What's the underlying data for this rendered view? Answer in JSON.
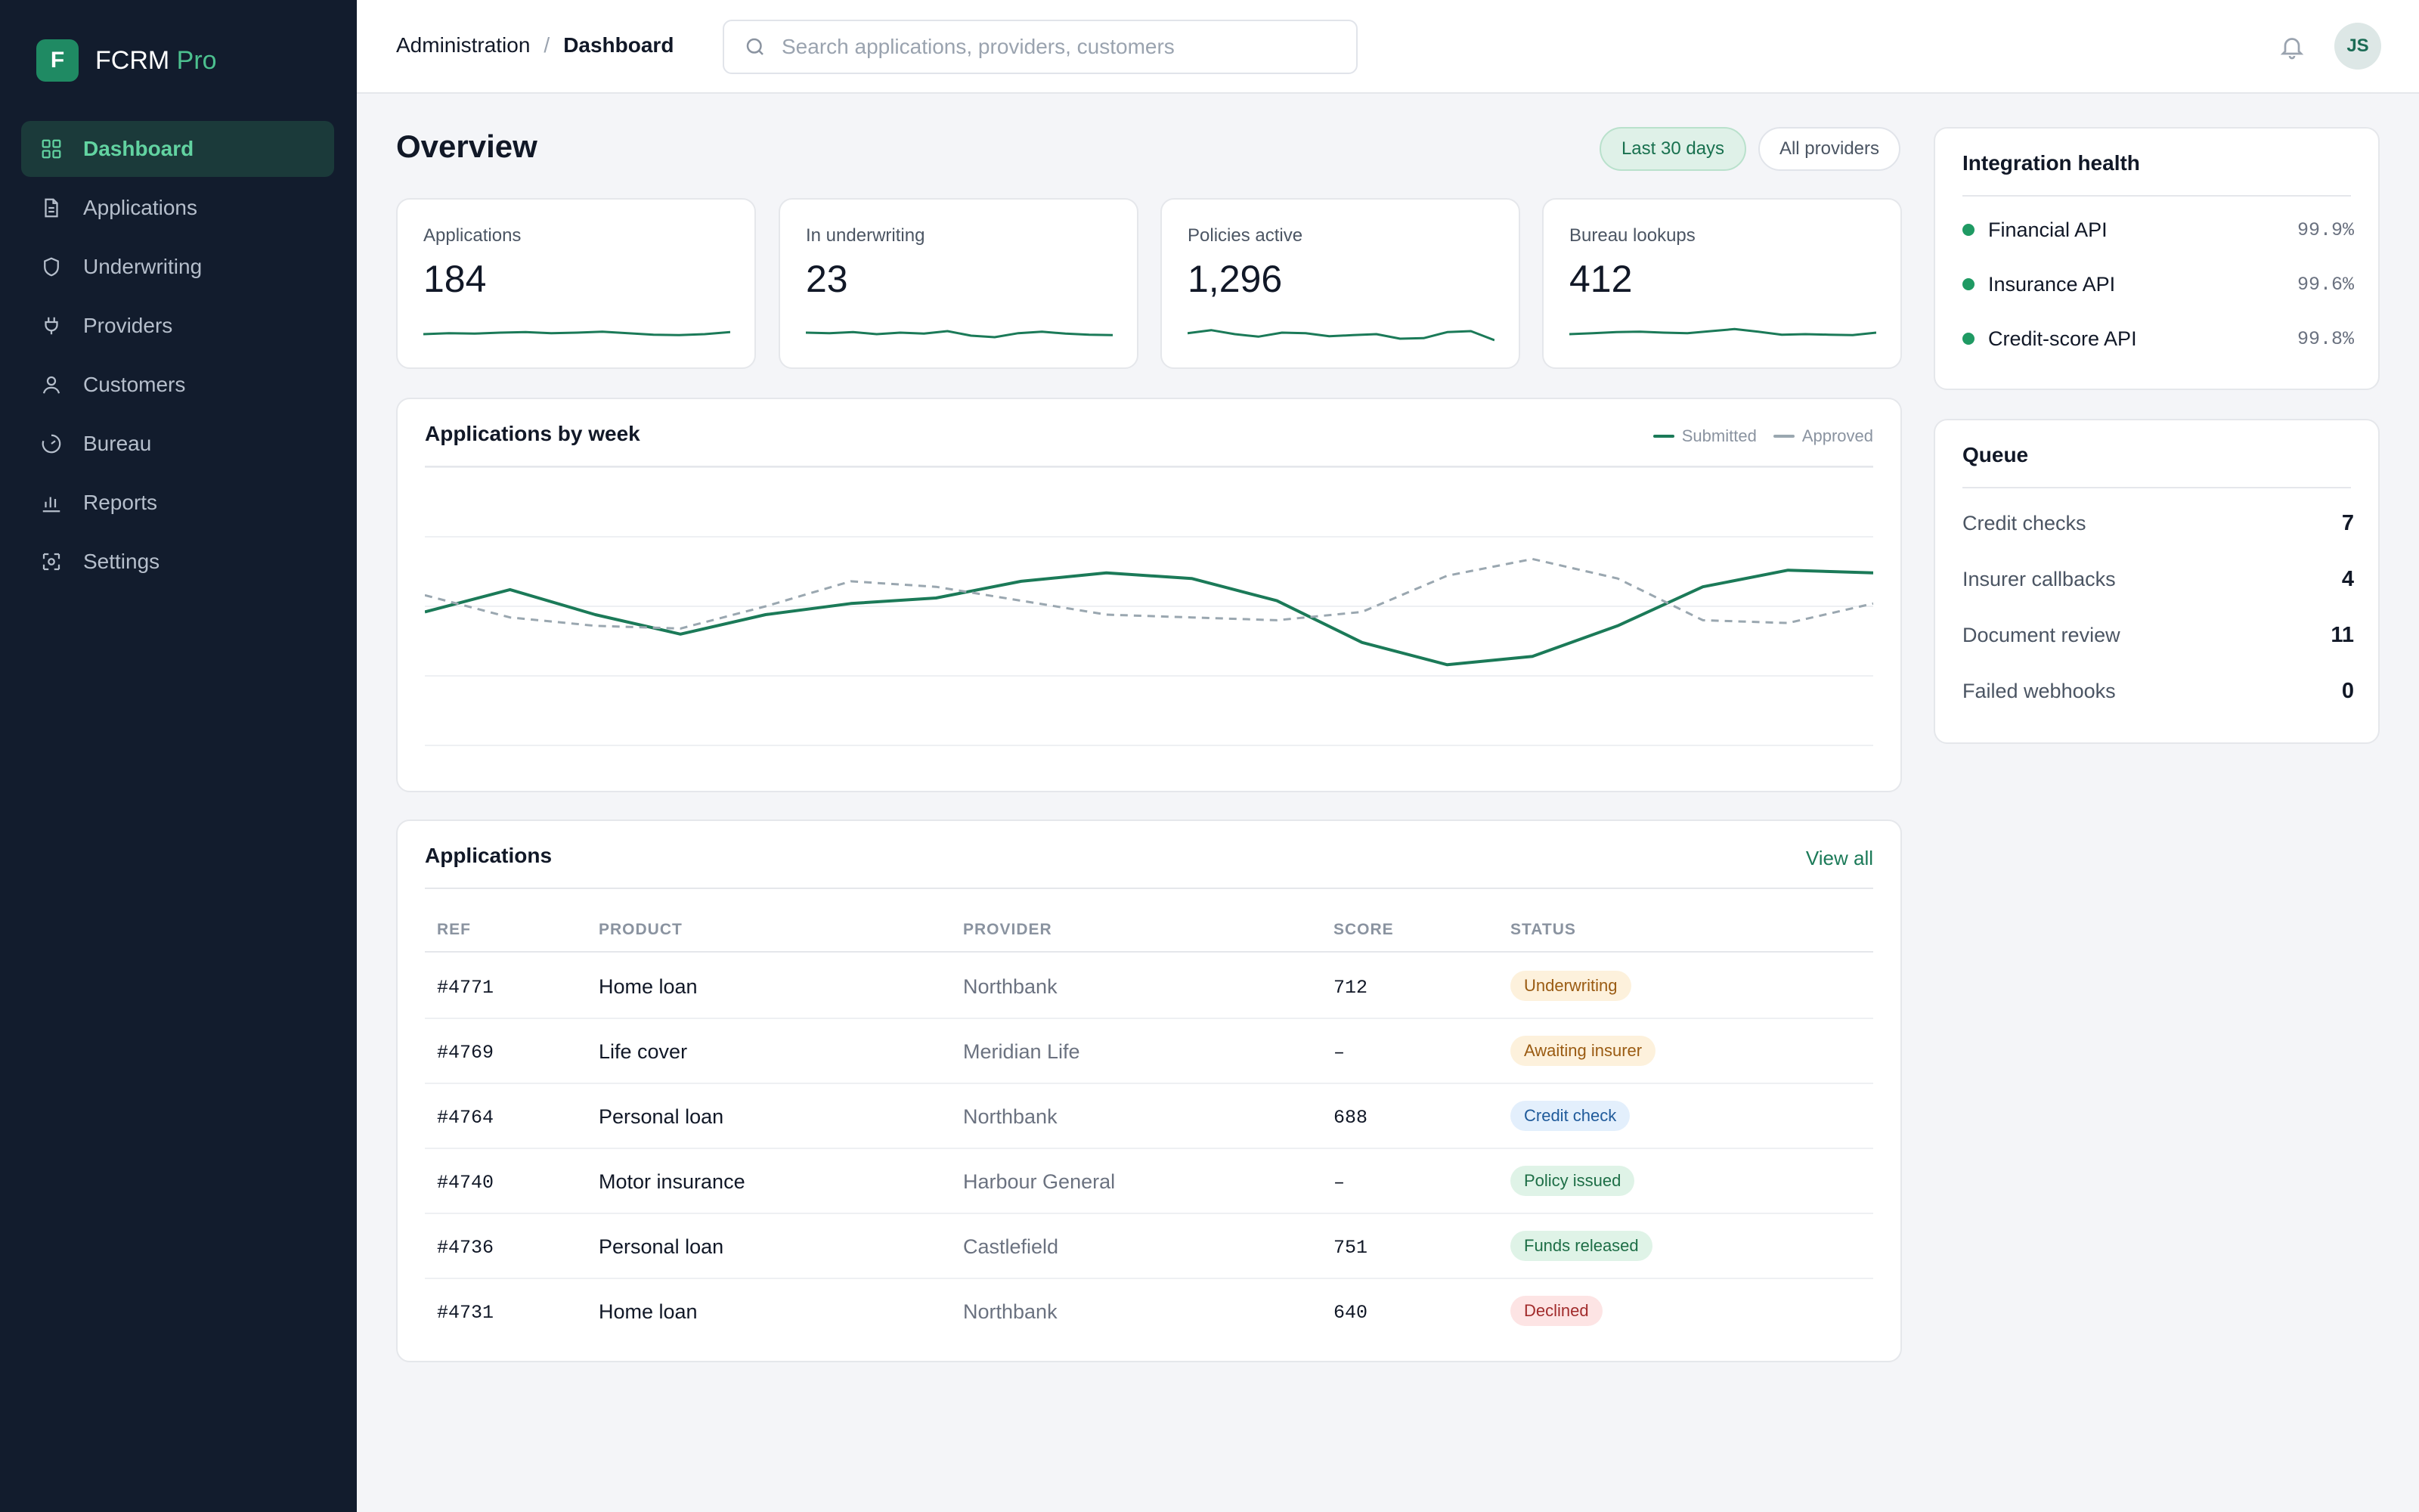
{
  "brand": {
    "logo_letter": "F",
    "name": "FCRM",
    "suffix": "Pro"
  },
  "sidebar": {
    "items": [
      {
        "label": "Dashboard",
        "icon": "dashboard-grid-icon",
        "active": true
      },
      {
        "label": "Applications",
        "icon": "document-icon",
        "active": false
      },
      {
        "label": "Underwriting",
        "icon": "shield-icon",
        "active": false
      },
      {
        "label": "Providers",
        "icon": "plug-icon",
        "active": false
      },
      {
        "label": "Customers",
        "icon": "user-icon",
        "active": false
      },
      {
        "label": "Bureau",
        "icon": "gauge-icon",
        "active": false
      },
      {
        "label": "Reports",
        "icon": "bar-chart-icon",
        "active": false
      },
      {
        "label": "Settings",
        "icon": "settings-icon",
        "active": false
      }
    ]
  },
  "header": {
    "breadcrumb": [
      "Administration",
      "Dashboard"
    ],
    "separator": "/",
    "search_placeholder": "Search applications, providers, customers",
    "avatar_initials": "JS"
  },
  "overview": {
    "title": "Overview",
    "filters": [
      "Last 30 days",
      "All providers"
    ]
  },
  "stats": [
    {
      "label": "Applications",
      "value": "184",
      "trend": [
        3.0,
        3.2,
        3.1,
        3.3,
        3.4,
        3.2,
        3.3,
        3.5,
        3.2,
        2.9,
        2.8,
        3.0,
        3.4
      ]
    },
    {
      "label": "In underwriting",
      "value": "23",
      "trend": [
        3.3,
        3.2,
        3.4,
        3.0,
        3.3,
        3.1,
        3.6,
        2.7,
        2.4,
        3.2,
        3.5,
        3.1,
        2.9,
        2.8
      ]
    },
    {
      "label": "Policies active",
      "value": "1,296",
      "trend": [
        3.2,
        3.8,
        3.0,
        2.5,
        3.3,
        3.2,
        2.6,
        2.8,
        3.0,
        2.1,
        2.2,
        3.4,
        3.6,
        1.8
      ]
    },
    {
      "label": "Bureau lookups",
      "value": "412",
      "trend": [
        3.0,
        3.2,
        3.4,
        3.5,
        3.3,
        3.2,
        3.6,
        4.0,
        3.5,
        2.9,
        3.0,
        2.9,
        2.8,
        3.3
      ]
    }
  ],
  "weekly_chart": {
    "title": "Applications by week",
    "legend": [
      {
        "name": "Submitted",
        "color": "#1b7a58",
        "dashed": false
      },
      {
        "name": "Approved",
        "color": "#9aa7b0",
        "dashed": true
      }
    ]
  },
  "chart_data": {
    "type": "line",
    "title": "Applications by week",
    "x": [
      1,
      2,
      3,
      4,
      5,
      6,
      7,
      8,
      9,
      10,
      11,
      12,
      13,
      14,
      15,
      16,
      17,
      18
    ],
    "series": [
      {
        "name": "Submitted",
        "values": [
          48,
          56,
          47,
          40,
          47,
          51,
          53,
          59,
          62,
          60,
          52,
          37,
          29,
          32,
          43,
          57,
          63,
          62
        ]
      },
      {
        "name": "Approved",
        "values": [
          54,
          46,
          43,
          42,
          50,
          59,
          57,
          52,
          47,
          46,
          45,
          48,
          61,
          67,
          60,
          45,
          44,
          51
        ]
      }
    ],
    "ylim": [
      0,
      100
    ],
    "grid": true,
    "legend_position": "top-right"
  },
  "applications": {
    "title": "Applications",
    "view_all_label": "View all",
    "columns": [
      "REF",
      "PRODUCT",
      "PROVIDER",
      "SCORE",
      "STATUS"
    ],
    "rows": [
      {
        "ref": "#4771",
        "product": "Home loan",
        "provider": "Northbank",
        "score": "712",
        "status": "Underwriting",
        "tone": "amber"
      },
      {
        "ref": "#4769",
        "product": "Life cover",
        "provider": "Meridian Life",
        "score": "–",
        "status": "Awaiting insurer",
        "tone": "amber"
      },
      {
        "ref": "#4764",
        "product": "Personal loan",
        "provider": "Northbank",
        "score": "688",
        "status": "Credit check",
        "tone": "blue"
      },
      {
        "ref": "#4740",
        "product": "Motor insurance",
        "provider": "Harbour General",
        "score": "–",
        "status": "Policy issued",
        "tone": "green"
      },
      {
        "ref": "#4736",
        "product": "Personal loan",
        "provider": "Castlefield",
        "score": "751",
        "status": "Funds released",
        "tone": "green"
      },
      {
        "ref": "#4731",
        "product": "Home loan",
        "provider": "Northbank",
        "score": "640",
        "status": "Declined",
        "tone": "red"
      }
    ]
  },
  "integration_health": {
    "title": "Integration health",
    "items": [
      {
        "name": "Financial API",
        "uptime": "99.9%",
        "status_color": "#1f9a63"
      },
      {
        "name": "Insurance API",
        "uptime": "99.6%",
        "status_color": "#1f9a63"
      },
      {
        "name": "Credit-score API",
        "uptime": "99.8%",
        "status_color": "#1f9a63"
      }
    ]
  },
  "queue": {
    "title": "Queue",
    "items": [
      {
        "name": "Credit checks",
        "count": "7"
      },
      {
        "name": "Insurer callbacks",
        "count": "4"
      },
      {
        "name": "Document review",
        "count": "11"
      },
      {
        "name": "Failed webhooks",
        "count": "0"
      }
    ]
  },
  "colors": {
    "accent": "#1b7a58",
    "sidebar_bg": "#121c2d",
    "badge_amber_bg": "#fdf1dc",
    "badge_amber_fg": "#9a5b12",
    "badge_blue_bg": "#e3effc",
    "badge_blue_fg": "#1f5a9a",
    "badge_green_bg": "#dff3e7",
    "badge_green_fg": "#1d6e46",
    "badge_red_bg": "#fde4e4",
    "badge_red_fg": "#a12b2b"
  }
}
